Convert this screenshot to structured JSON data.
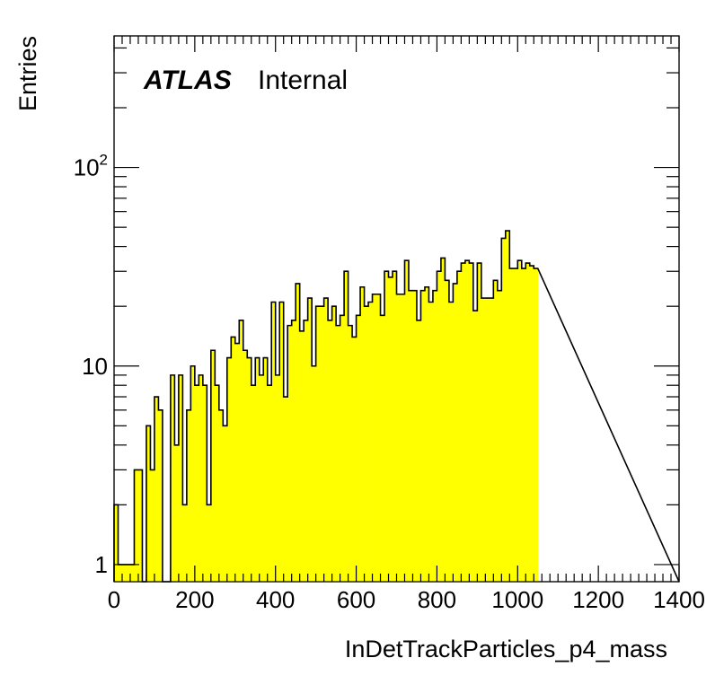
{
  "chart_data": {
    "type": "bar",
    "style": "filled-histogram",
    "fill_color": "#ffff00",
    "line_color": "#000000",
    "xlabel": "InDetTrackParticles_p4_mass",
    "ylabel": "Entries",
    "experiment_label": "ATLAS",
    "status_label": "Internal",
    "xlim": [
      0,
      1400
    ],
    "ylim": [
      0.82,
      460
    ],
    "y_scale": "log",
    "grid": false,
    "bin_width": 10,
    "x_ticks": [
      "0",
      "200",
      "400",
      "600",
      "800",
      "1000",
      "1200",
      "1400"
    ],
    "y_tick_labels": [
      {
        "value": 1,
        "base": "1",
        "exp": ""
      },
      {
        "value": 10,
        "base": "10",
        "exp": ""
      },
      {
        "value": 100,
        "base": "10",
        "exp": "2"
      }
    ],
    "bin_edges_start": 0,
    "values": [
      2,
      1,
      1,
      1,
      1,
      3,
      3,
      0,
      5,
      3,
      7,
      6,
      0,
      0,
      9,
      4,
      9,
      2,
      6,
      10,
      8,
      9,
      8,
      2,
      12,
      8,
      6,
      5,
      11,
      14,
      13,
      17,
      12,
      11,
      8,
      11,
      9,
      11,
      8,
      21,
      9,
      21,
      7,
      16,
      17,
      26,
      15,
      17,
      22,
      10,
      20,
      20,
      22,
      17,
      20,
      16,
      18,
      30,
      16,
      14,
      18,
      25,
      20,
      21,
      23,
      23,
      18,
      30,
      28,
      30,
      23,
      23,
      34,
      24,
      24,
      17,
      24,
      25,
      21,
      24,
      30,
      35,
      27,
      21,
      26,
      30,
      33,
      34,
      33,
      19,
      33,
      22,
      22,
      22,
      27,
      24,
      44,
      48,
      31,
      31,
      34,
      31,
      33,
      32,
      31
    ]
  }
}
